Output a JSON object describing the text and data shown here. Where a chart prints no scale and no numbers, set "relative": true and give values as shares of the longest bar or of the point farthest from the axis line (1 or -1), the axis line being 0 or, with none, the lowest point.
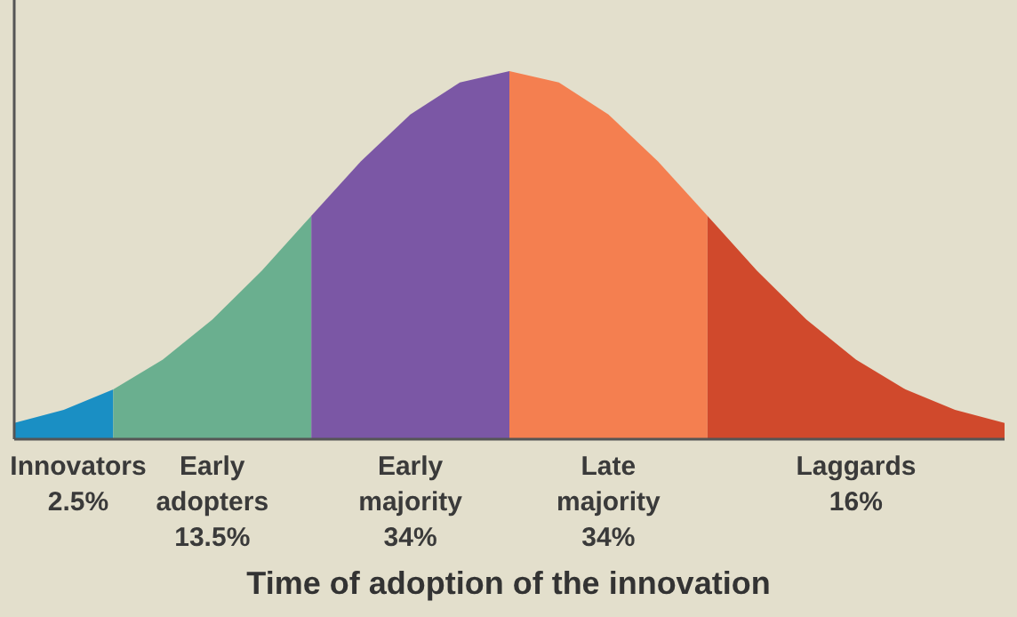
{
  "chart_data": {
    "type": "area",
    "relative": true,
    "xlabel": "Time of adoption of the innovation",
    "categories": [
      null,
      null,
      null,
      null,
      null,
      null,
      null,
      null,
      null,
      null,
      null,
      null,
      null,
      null,
      null,
      null,
      null,
      null,
      null,
      null,
      null
    ],
    "series": [
      {
        "color": "#1a8fc4",
        "values": [
          0.044,
          0.08,
          0.135,
          null,
          null,
          null,
          null,
          null,
          null,
          null,
          null,
          null,
          null,
          null,
          null,
          null,
          null,
          null,
          null,
          null,
          null
        ]
      },
      {
        "color": "#6aaf8f",
        "values": [
          null,
          null,
          0.135,
          0.216,
          0.325,
          0.458,
          0.607,
          null,
          null,
          null,
          null,
          null,
          null,
          null,
          null,
          null,
          null,
          null,
          null,
          null,
          null
        ]
      },
      {
        "color": "#7b57a5",
        "values": [
          null,
          null,
          null,
          null,
          null,
          null,
          0.607,
          0.755,
          0.882,
          0.969,
          1,
          null,
          null,
          null,
          null,
          null,
          null,
          null,
          null,
          null,
          null
        ]
      },
      {
        "color": "#f47f50",
        "values": [
          null,
          null,
          null,
          null,
          null,
          null,
          null,
          null,
          null,
          null,
          1,
          0.969,
          0.882,
          0.755,
          0.607,
          null,
          null,
          null,
          null,
          null,
          null
        ]
      },
      {
        "color": "#d0492c",
        "values": [
          null,
          null,
          null,
          null,
          null,
          null,
          null,
          null,
          null,
          null,
          null,
          null,
          null,
          null,
          0.607,
          0.458,
          0.325,
          0.216,
          0.135,
          0.08,
          0.044
        ]
      }
    ],
    "annotations": [
      "Innovators\n2.5%",
      "Early\nadopters\n13.5%",
      "Early\nmajority\n34%",
      "Late\nmajority\n34%",
      "Laggards\n16%"
    ]
  }
}
